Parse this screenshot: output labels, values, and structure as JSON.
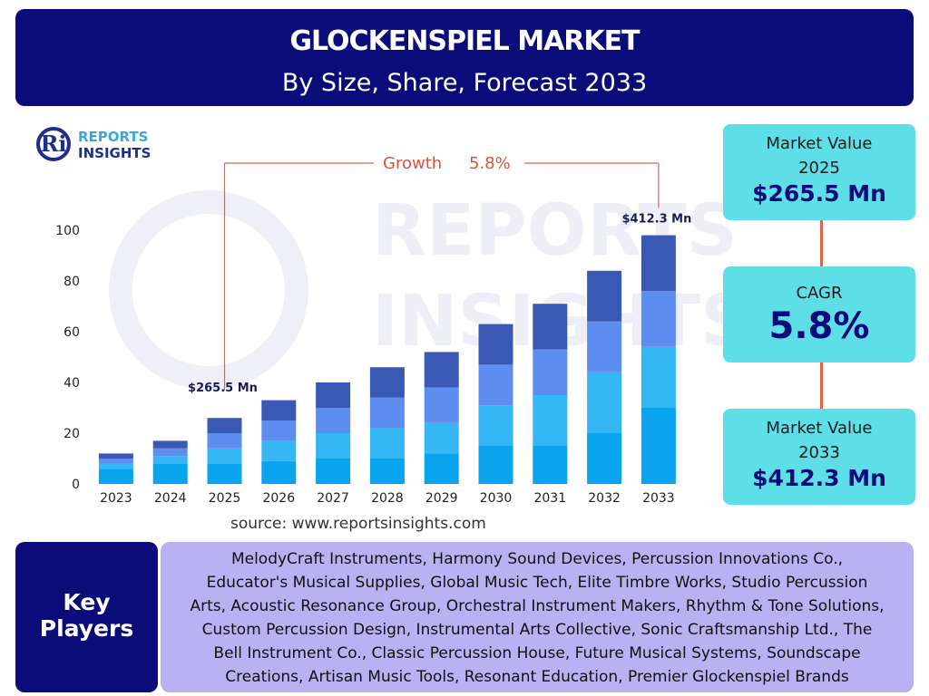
{
  "header": {
    "title": "GLOCKENSPIEL MARKET",
    "subtitle": "By Size, Share, Forecast 2033"
  },
  "logo": {
    "mark": "Ri",
    "line1": "REPORTS",
    "line2": "INSIGHTS"
  },
  "watermark": {
    "line1": "REPORTS",
    "line2": "INSIGHTS"
  },
  "chart_data": {
    "type": "bar",
    "stacked": true,
    "categories": [
      "2023",
      "2024",
      "2025",
      "2026",
      "2027",
      "2028",
      "2029",
      "2030",
      "2031",
      "2032",
      "2033"
    ],
    "series": [
      {
        "color": "#0aa3ee",
        "values": [
          6,
          8,
          8,
          9,
          10,
          10,
          12,
          15,
          15,
          20,
          30
        ]
      },
      {
        "color": "#35b6f5",
        "values": [
          2,
          3,
          6,
          8,
          10,
          12,
          12,
          16,
          20,
          24,
          24
        ]
      },
      {
        "color": "#5e8df0",
        "values": [
          2,
          3,
          6,
          8,
          10,
          12,
          14,
          16,
          18,
          20,
          22
        ]
      },
      {
        "color": "#3a59b5",
        "values": [
          2,
          3,
          6,
          8,
          10,
          12,
          14,
          16,
          18,
          20,
          22
        ]
      }
    ],
    "totals": [
      12,
      17,
      26,
      33,
      40,
      46,
      52,
      63,
      71,
      84,
      98
    ],
    "ylim": [
      0,
      100
    ],
    "yticks": [
      0,
      20,
      40,
      60,
      80,
      100
    ],
    "grid": false,
    "annotations": {
      "start_label": "$265.5 Mn",
      "start_category": "2025",
      "end_label": "$412.3 Mn",
      "end_category": "2033",
      "growth_text": "Growth",
      "growth_value": "5.8%"
    }
  },
  "source": "source: www.reportsinsights.com",
  "cards": {
    "start": {
      "label1": "Market Value",
      "label2": "2025",
      "value": "$265.5 Mn"
    },
    "cagr": {
      "label": "CAGR",
      "value": "5.8%"
    },
    "end": {
      "label1": "Market Value",
      "label2": "2033",
      "value": "$412.3 Mn"
    }
  },
  "key_players": {
    "heading1": "Key",
    "heading2": "Players",
    "lines": [
      "MelodyCraft Instruments, Harmony Sound Devices, Percussion Innovations Co.,",
      "Educator's Musical Supplies, Global Music Tech, Elite Timbre Works, Studio Percussion",
      "Arts, Acoustic Resonance Group, Orchestral Instrument Makers, Rhythm & Tone Solutions,",
      "Custom Percussion Design, Instrumental Arts Collective, Sonic Craftsmanship Ltd., The",
      "Bell Instrument Co., Classic Percussion House, Future Musical Systems, Soundscape",
      "Creations, Artisan Music Tools, Resonant Education, Premier Glockenspiel Brands"
    ]
  }
}
